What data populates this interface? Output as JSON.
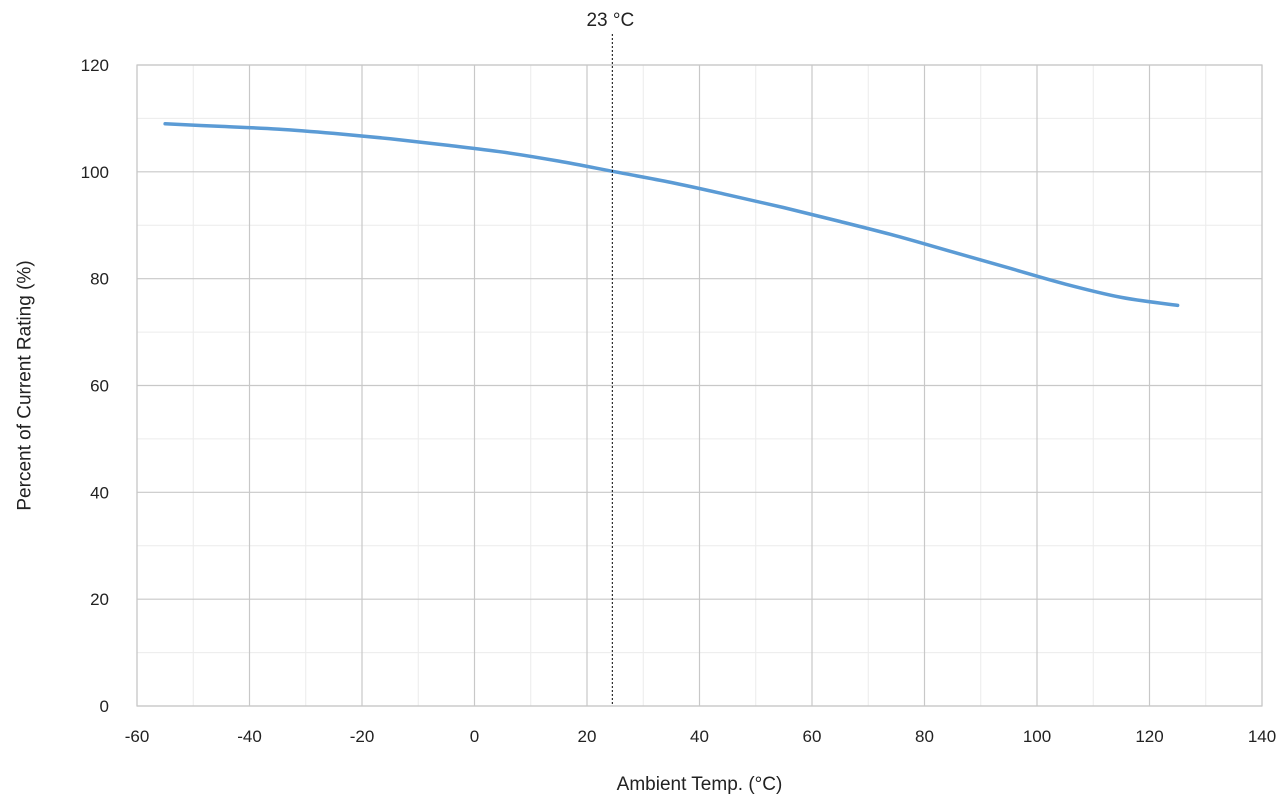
{
  "chart_data": {
    "type": "line",
    "title": "",
    "xlabel": "Ambient Temp. (°C)",
    "ylabel": "Percent of Current Rating (%)",
    "xlim": [
      -60,
      140
    ],
    "ylim": [
      0,
      120
    ],
    "x_ticks": [
      -60,
      -40,
      -20,
      0,
      20,
      40,
      60,
      80,
      100,
      120,
      140
    ],
    "y_ticks": [
      0,
      20,
      40,
      60,
      80,
      100,
      120
    ],
    "grid": true,
    "minor_grid": true,
    "legend": "none",
    "series": [
      {
        "color": "#5b9bd5",
        "x": [
          -55,
          -45,
          -35,
          -25,
          -15,
          -5,
          5,
          15,
          25,
          35,
          45,
          55,
          65,
          75,
          85,
          95,
          105,
          115,
          125
        ],
        "y": [
          109,
          108.5,
          108,
          107.2,
          106.2,
          105,
          103.7,
          102,
          100,
          98,
          95.7,
          93.3,
          90.7,
          88,
          85,
          82,
          79,
          76.5,
          75
        ]
      }
    ],
    "reference_line": {
      "x": 24.5,
      "label": "23 °C",
      "style": "dotted",
      "color": "#000000"
    }
  }
}
